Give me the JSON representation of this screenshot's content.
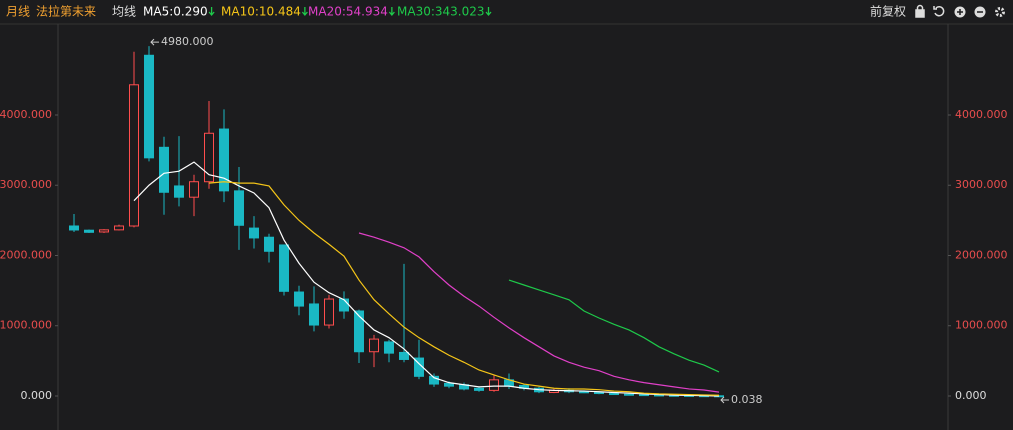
{
  "chart_data": {
    "type": "candlestick",
    "period": "月线",
    "name": "法拉第未来",
    "ma_title": "均线",
    "adjust": "前复权",
    "up_color": "#ff4d4d",
    "down_color": "#1ab8c4",
    "open": [
      2420,
      2360,
      2335,
      2365,
      2420,
      4850,
      3540,
      2990,
      2830,
      3050,
      3800,
      2920,
      2390,
      2260,
      2150,
      1480,
      1310,
      1010,
      1380,
      1210,
      630,
      770,
      620,
      540,
      280,
      180,
      160,
      110,
      80,
      230,
      150,
      110,
      50,
      80,
      60,
      55,
      35,
      25,
      20,
      15,
      10,
      8,
      5,
      3
    ],
    "high": [
      2590,
      2370,
      2375,
      2440,
      4900,
      4980,
      3690,
      3700,
      3150,
      4200,
      4080,
      3260,
      2560,
      2310,
      2150,
      1570,
      1560,
      1440,
      1490,
      1230,
      870,
      800,
      1880,
      800,
      320,
      210,
      190,
      130,
      300,
      320,
      170,
      130,
      100,
      110,
      80,
      70,
      45,
      35,
      25,
      20,
      14,
      10,
      7,
      4
    ],
    "low": [
      2335,
      2320,
      2320,
      2355,
      2400,
      3340,
      2580,
      2700,
      2560,
      2950,
      2760,
      2080,
      2100,
      1900,
      1430,
      1150,
      920,
      960,
      1100,
      470,
      410,
      480,
      480,
      240,
      130,
      110,
      80,
      60,
      60,
      100,
      80,
      40,
      40,
      40,
      40,
      25,
      15,
      10,
      8,
      5,
      4,
      3,
      2,
      0.038
    ],
    "close": [
      2363,
      2330,
      2365,
      2420,
      4430,
      3390,
      2900,
      2830,
      3050,
      3740,
      2920,
      2430,
      2250,
      2060,
      1490,
      1280,
      1010,
      1380,
      1210,
      630,
      810,
      610,
      520,
      280,
      170,
      140,
      100,
      80,
      230,
      140,
      110,
      60,
      80,
      60,
      50,
      35,
      25,
      20,
      15,
      10,
      8,
      5,
      3,
      0.5
    ],
    "ma": [
      {
        "name": "MA5:0.290",
        "color": "#ffffff",
        "values": [
          null,
          null,
          null,
          null,
          2780,
          3000,
          3170,
          3200,
          3330,
          3150,
          3100,
          2990,
          2890,
          2680,
          2220,
          1890,
          1620,
          1470,
          1370,
          1140,
          940,
          830,
          670,
          460,
          260,
          190,
          160,
          130,
          140,
          140,
          110,
          90,
          80,
          75,
          70,
          60,
          50,
          40,
          30,
          20,
          12,
          8,
          4,
          0.29
        ]
      },
      {
        "name": "MA10:10.484",
        "color": "#f5c518",
        "values": [
          null,
          null,
          null,
          null,
          null,
          null,
          null,
          null,
          null,
          3030,
          3050,
          3030,
          3030,
          2990,
          2720,
          2500,
          2320,
          2160,
          1990,
          1650,
          1370,
          1170,
          980,
          830,
          700,
          580,
          480,
          370,
          300,
          230,
          170,
          140,
          110,
          100,
          100,
          90,
          70,
          60,
          40,
          30,
          25,
          20,
          15,
          10.484
        ]
      },
      {
        "name": "MA20:54.934",
        "color": "#e040c8",
        "values": [
          null,
          null,
          null,
          null,
          null,
          null,
          null,
          null,
          null,
          null,
          null,
          null,
          null,
          null,
          null,
          null,
          null,
          null,
          null,
          2320,
          2260,
          2190,
          2110,
          1980,
          1770,
          1580,
          1420,
          1280,
          1120,
          970,
          830,
          700,
          570,
          480,
          410,
          360,
          280,
          230,
          190,
          160,
          130,
          100,
          85,
          54.934
        ]
      },
      {
        "name": "MA30:343.023",
        "color": "#1ec94a",
        "values": [
          null,
          null,
          null,
          null,
          null,
          null,
          null,
          null,
          null,
          null,
          null,
          null,
          null,
          null,
          null,
          null,
          null,
          null,
          null,
          null,
          null,
          null,
          null,
          null,
          null,
          null,
          null,
          null,
          null,
          1650,
          1580,
          1510,
          1440,
          1370,
          1210,
          1110,
          1020,
          940,
          830,
          700,
          600,
          510,
          440,
          343.023
        ]
      }
    ],
    "max_label": {
      "value": 4980,
      "label": "4980.000"
    },
    "min_label": {
      "value": 0.038,
      "label": "0.038"
    },
    "ylim": [
      -413,
      5210
    ],
    "yticks": [
      {
        "value": 0,
        "label": "0.000"
      },
      {
        "value": 1000,
        "label": "1000.000"
      },
      {
        "value": 2000,
        "label": "2000.000"
      },
      {
        "value": 3000,
        "label": "3000.000"
      },
      {
        "value": 4000,
        "label": "4000.000"
      }
    ]
  }
}
